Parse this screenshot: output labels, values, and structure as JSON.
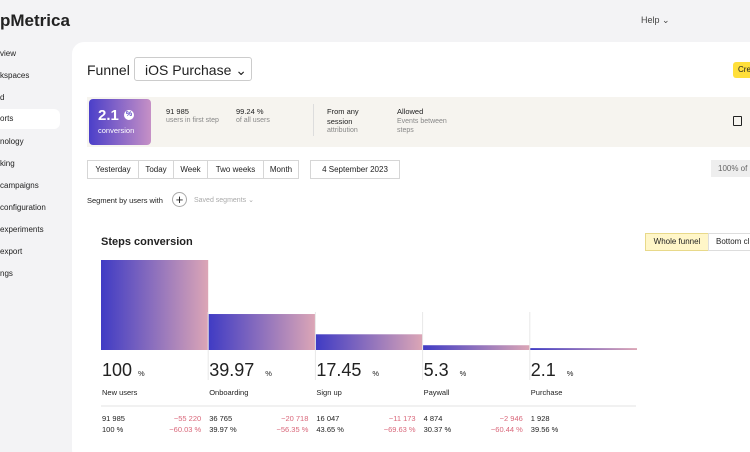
{
  "brand": "pMetrica",
  "sidebar": [
    "view",
    "kspaces",
    "d",
    "orts",
    "nology",
    "king",
    "campaigns",
    "configuration",
    "experiments",
    "export",
    "ngs"
  ],
  "header": {
    "help": "Help"
  },
  "page": {
    "title": "Funnel",
    "funnel_name": "iOS Purchase",
    "create_button": "Cre"
  },
  "summary": {
    "conversion_value": "2.1",
    "conversion_unit": "%",
    "conversion_label": "conversion",
    "users": "91 985",
    "users_label": "users in first step",
    "share": "99.24 %",
    "share_label": "of all users",
    "attribution": "From any session",
    "attribution_label": "attribution",
    "events": "Allowed",
    "events_label": "Events between steps"
  },
  "periods": [
    "Yesterday",
    "Today",
    "Week",
    "Two weeks",
    "Month"
  ],
  "date": "4 September 2023",
  "sample": "100% of",
  "segment_label": "Segment by users with",
  "saved_segments": "Saved segments",
  "chart": {
    "title": "Steps conversion",
    "modes": [
      "Whole funnel",
      "Bottom cl"
    ],
    "steps": [
      {
        "percent": 100,
        "unit": "%",
        "name": "New users",
        "users": "91 985",
        "share": "100 %",
        "lost_users": "−55 220",
        "lost_share": "−60.03 %"
      },
      {
        "percent": 39.97,
        "unit": "%",
        "name": "Onboarding",
        "users": "36 765",
        "share": "39.97 %",
        "lost_users": "−20 718",
        "lost_share": "−56.35 %"
      },
      {
        "percent": 17.45,
        "unit": "%",
        "name": "Sign up",
        "users": "16 047",
        "share": "43.65 %",
        "lost_users": "−11 173",
        "lost_share": "−69.63 %"
      },
      {
        "percent": 5.3,
        "unit": "%",
        "name": "Paywall",
        "users": "4 874",
        "share": "30.37 %",
        "lost_users": "−2 946",
        "lost_share": "−60.44 %"
      },
      {
        "percent": 2.1,
        "unit": "%",
        "name": "Purchase",
        "users": "1 928",
        "share": "39.56 %"
      }
    ]
  }
}
